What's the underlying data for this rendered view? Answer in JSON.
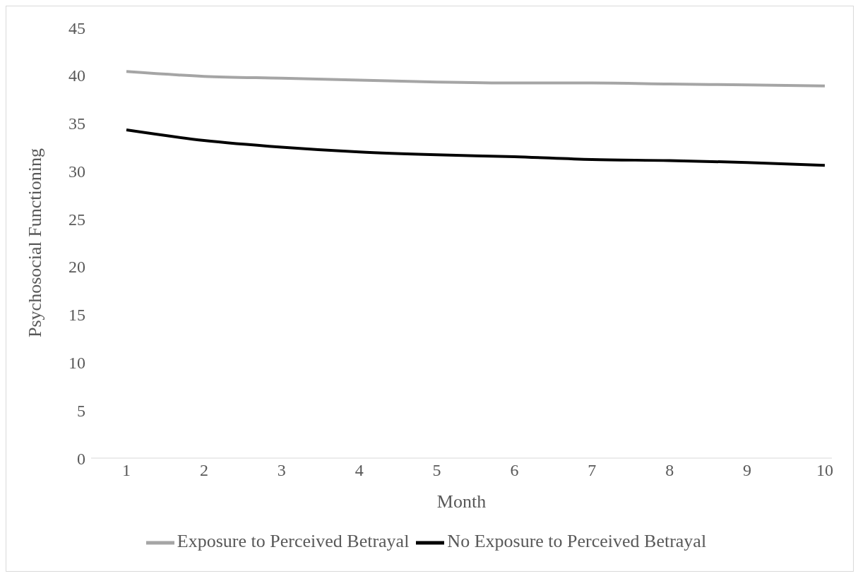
{
  "chart_data": {
    "type": "line",
    "xlabel": "Month",
    "ylabel": "Psychosocial Functioning",
    "categories": [
      "1",
      "2",
      "3",
      "4",
      "5",
      "6",
      "7",
      "8",
      "9",
      "10"
    ],
    "series": [
      {
        "name": "No Exposure to Perceived Betrayal",
        "color": "#000000",
        "values": [
          34.3,
          33.2,
          32.5,
          32.0,
          31.7,
          31.5,
          31.2,
          31.1,
          30.9,
          30.6
        ]
      },
      {
        "name": "Exposure to Perceived Betrayal",
        "color": "#a5a5a5",
        "values": [
          40.4,
          39.9,
          39.7,
          39.5,
          39.3,
          39.2,
          39.2,
          39.1,
          39.0,
          38.9
        ]
      }
    ],
    "ylim": [
      0,
      45
    ],
    "yticks": [
      0,
      5,
      10,
      15,
      20,
      25,
      30,
      35,
      40,
      45
    ],
    "grid": false,
    "legend": "bottom",
    "marker": "none",
    "line_style": "solid"
  }
}
